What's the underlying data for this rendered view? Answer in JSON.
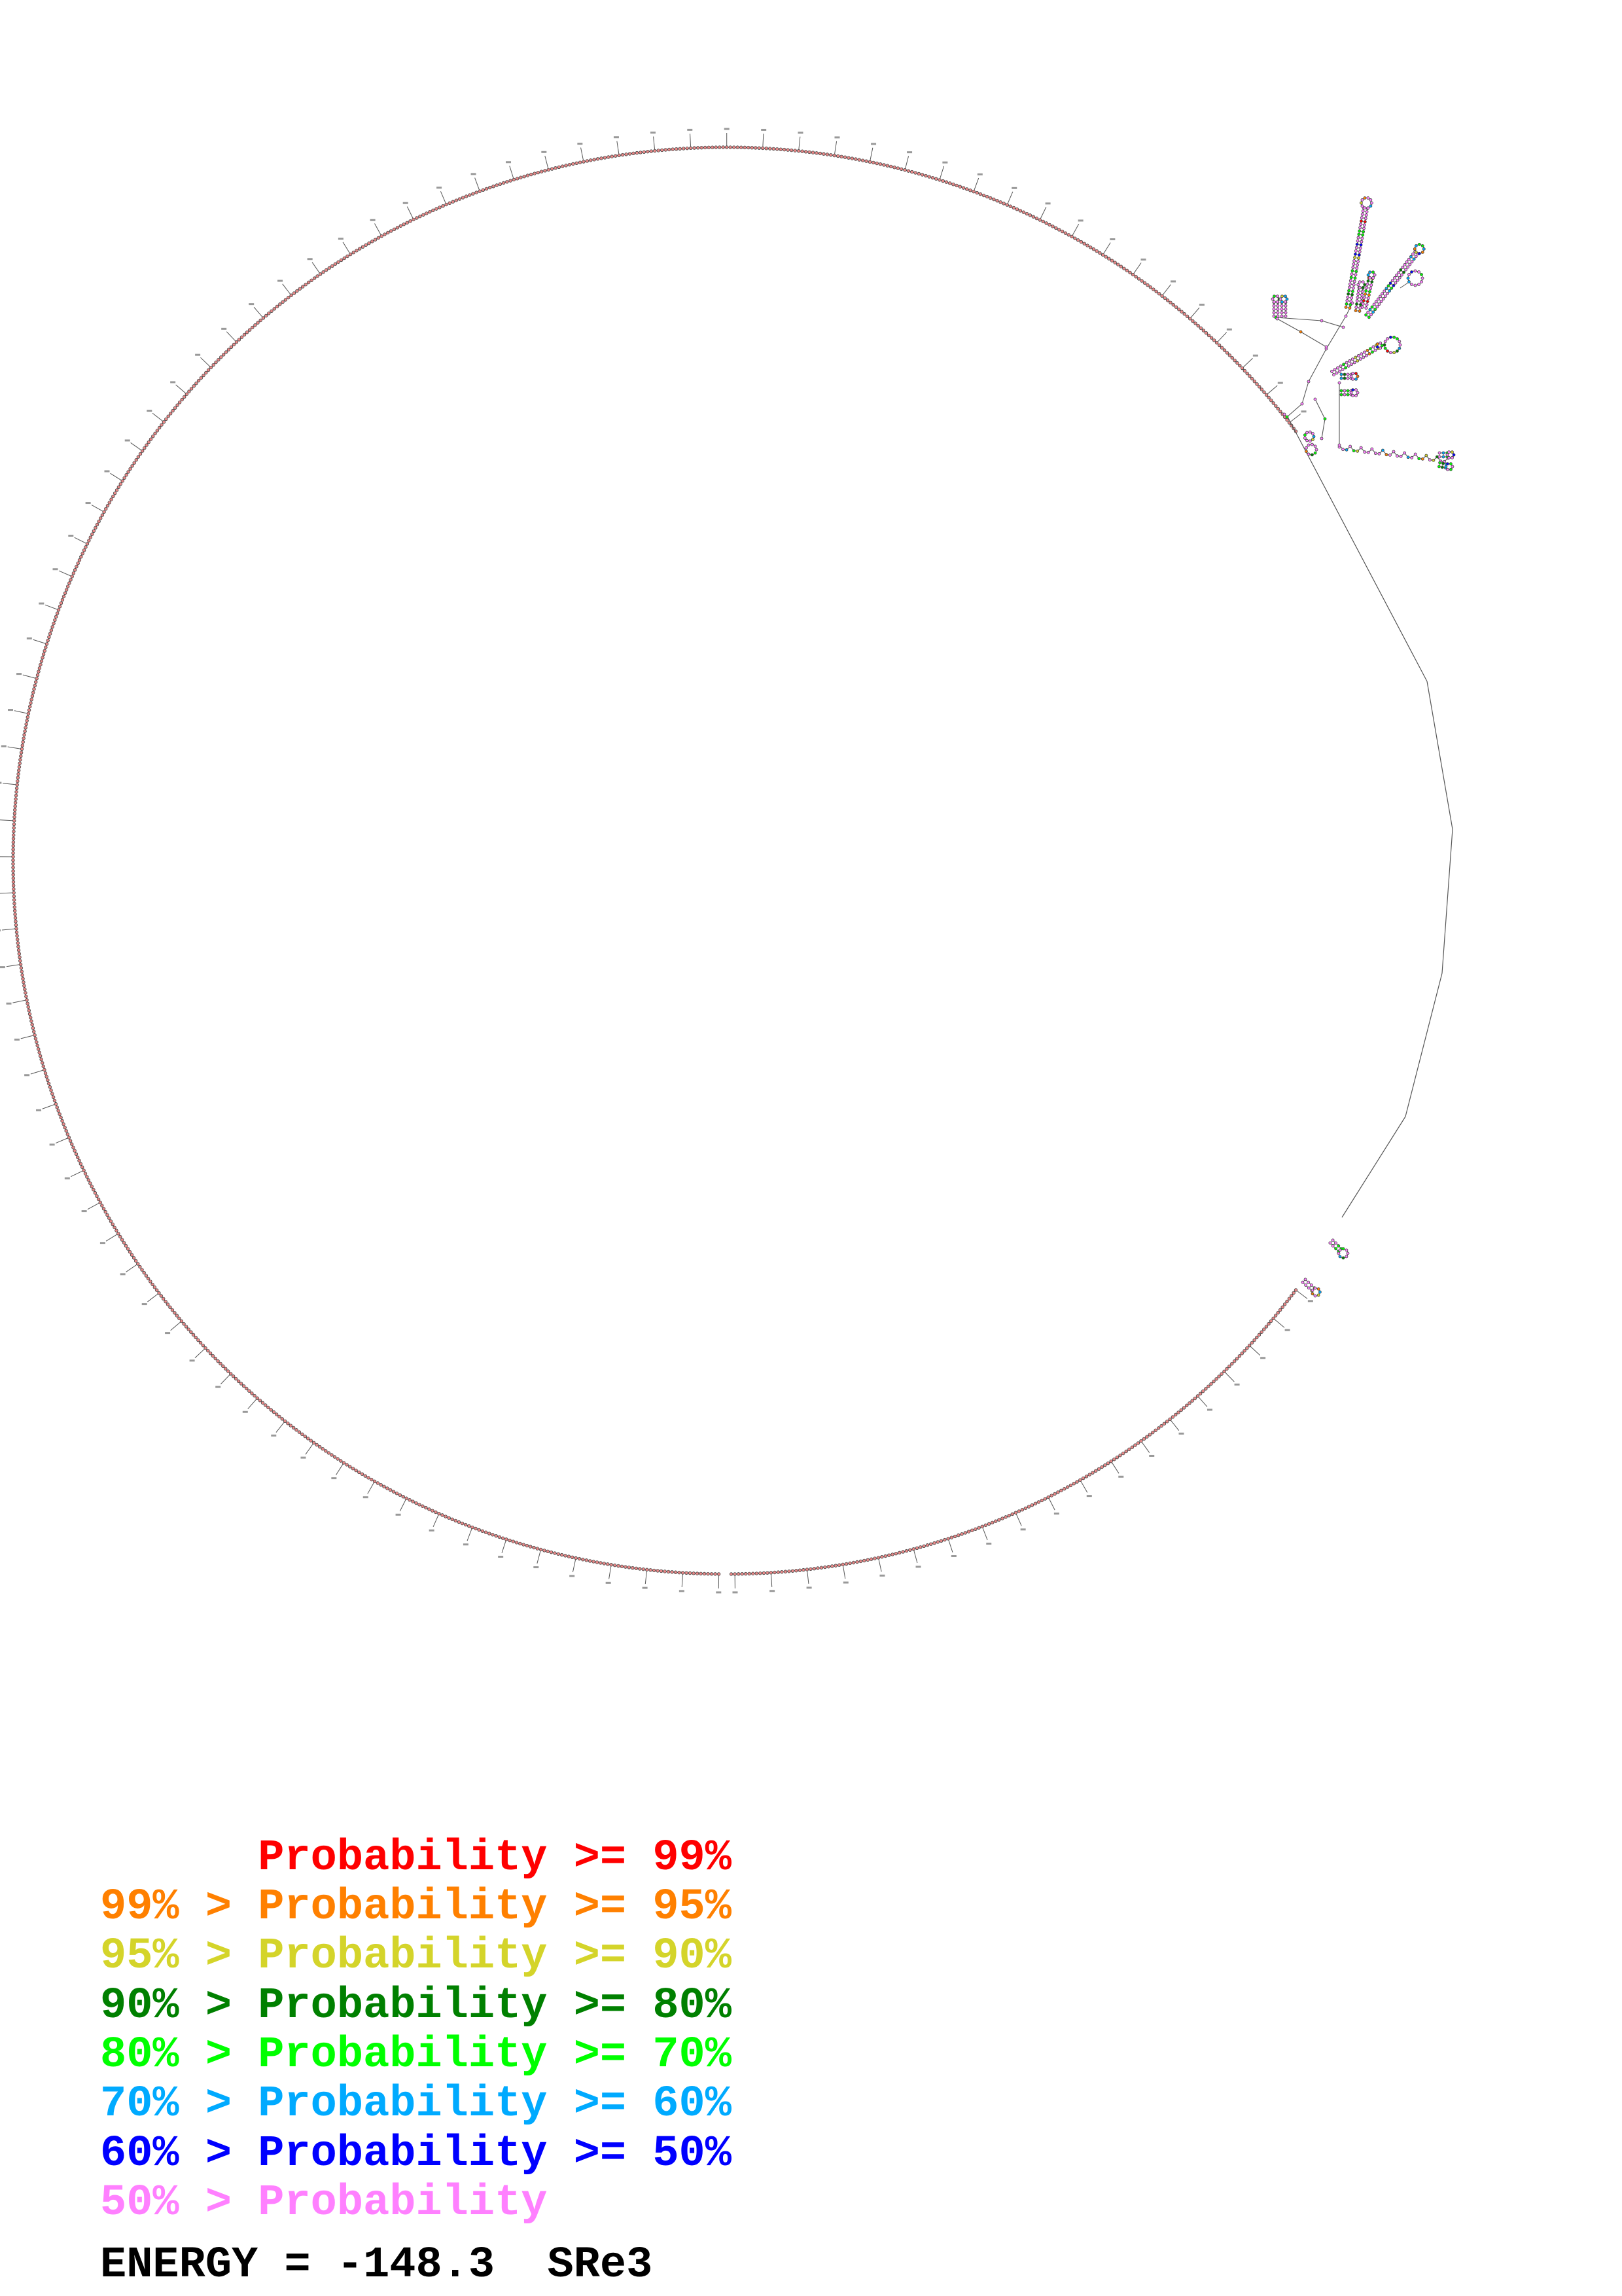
{
  "legend": {
    "items": [
      {
        "lower": "",
        "text": "Probability >= 99%",
        "color": "#ff0000"
      },
      {
        "lower": "99% >",
        "text": "Probability >= 95%",
        "color": "#ff8000"
      },
      {
        "lower": "95% >",
        "text": "Probability >= 90%",
        "color": "#d4d42a"
      },
      {
        "lower": "90% >",
        "text": "Probability >= 80%",
        "color": "#008000"
      },
      {
        "lower": "80% >",
        "text": "Probability >= 70%",
        "color": "#00ff00"
      },
      {
        "lower": "70% >",
        "text": "Probability >= 60%",
        "color": "#00aaff"
      },
      {
        "lower": "60% >",
        "text": "Probability >= 50%",
        "color": "#0000ff"
      },
      {
        "lower": "50% >",
        "text": "Probability",
        "color": "#ff80ff"
      }
    ]
  },
  "footer": {
    "energy_text": "ENERGY = -148.3  SRe3"
  },
  "colors": {
    "backbone": "#555555",
    "nucleotide_fill": "#e88888",
    "unpaired_fill": "#e0a0e8"
  }
}
